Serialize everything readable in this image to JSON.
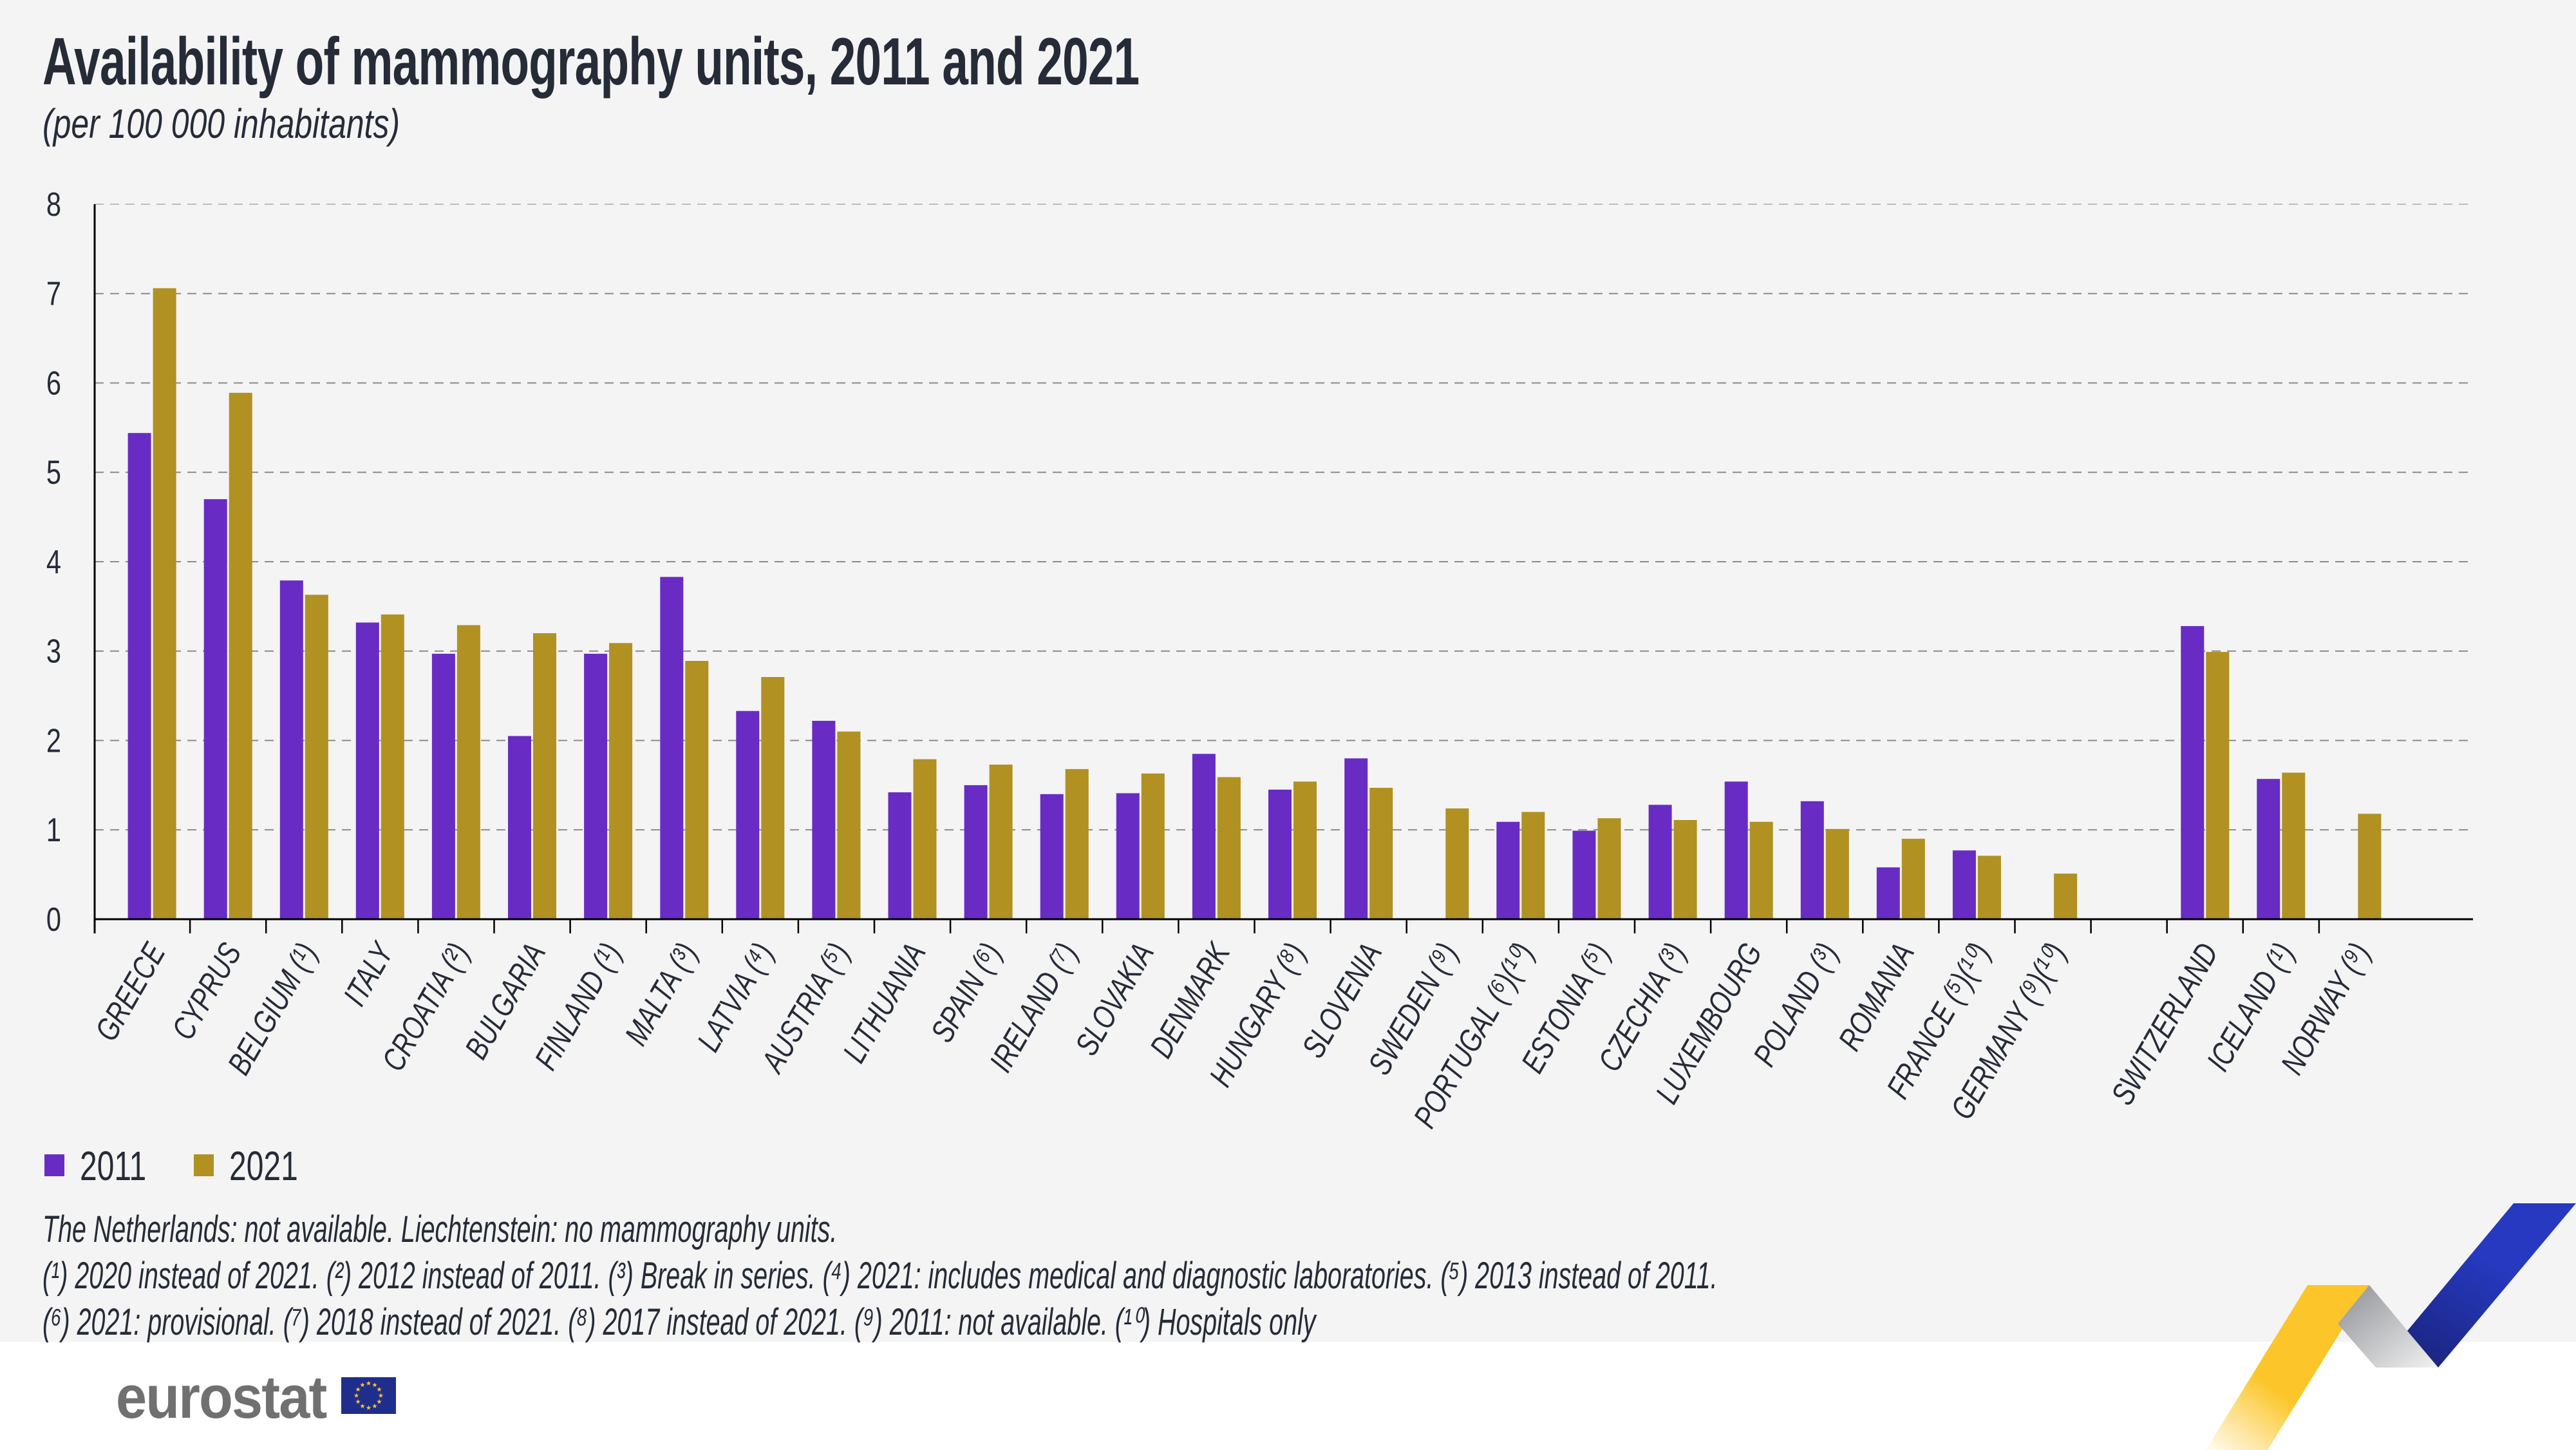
{
  "header": {
    "title": "Availability of mammography units, 2011 and 2021",
    "subtitle": "(per 100 000 inhabitants)"
  },
  "colors": {
    "series_2011": "#682cc5",
    "series_2021": "#b09122",
    "text": "#262b38",
    "background": "#f4f4f4"
  },
  "chart_data": {
    "type": "bar",
    "title": "Availability of mammography units, 2011 and 2021",
    "subtitle": "(per 100 000 inhabitants)",
    "xlabel": "",
    "ylabel": "",
    "ylim": [
      0,
      8
    ],
    "yticks": [
      "0",
      "1",
      "2",
      "3",
      "4",
      "5",
      "6",
      "7",
      "8"
    ],
    "grid": true,
    "legend_position": "bottom-left",
    "categories": [
      "GREECE",
      "CYPRUS",
      "BELGIUM (¹)",
      "ITALY",
      "CROATIA (²)",
      "BULGARIA",
      "FINLAND (¹)",
      "MALTA (³)",
      "LATVIA (⁴)",
      "AUSTRIA (⁵)",
      "LITHUANIA",
      "SPAIN (⁶)",
      "IRELAND (⁷)",
      "SLOVAKIA",
      "DENMARK",
      "HUNGARY (⁸)",
      "SLOVENIA",
      "SWEDEN (⁹)",
      "PORTUGAL (⁶)(¹⁰)",
      "ESTONIA (⁵)",
      "CZECHIA (³)",
      "LUXEMBOURG",
      "POLAND (³)",
      "ROMANIA",
      "FRANCE (⁵)(¹⁰)",
      "GERMANY (⁹)(¹⁰)",
      "",
      "SWITZERLAND",
      "ICELAND (¹)",
      "NORWAY (⁹)"
    ],
    "series": [
      {
        "name": "2011",
        "values": [
          5.44,
          4.7,
          3.79,
          3.32,
          2.97,
          2.05,
          2.97,
          3.83,
          2.33,
          2.22,
          1.42,
          1.5,
          1.4,
          1.41,
          1.85,
          1.45,
          1.8,
          null,
          1.09,
          0.99,
          1.28,
          1.54,
          1.32,
          0.58,
          0.77,
          null,
          null,
          3.28,
          1.57,
          null
        ]
      },
      {
        "name": "2021",
        "values": [
          7.06,
          5.89,
          3.63,
          3.41,
          3.29,
          3.2,
          3.09,
          2.89,
          2.71,
          2.1,
          1.79,
          1.73,
          1.68,
          1.63,
          1.59,
          1.54,
          1.47,
          1.24,
          1.2,
          1.13,
          1.11,
          1.09,
          1.01,
          0.9,
          0.71,
          0.51,
          null,
          2.99,
          1.64,
          1.18
        ]
      }
    ]
  },
  "legend": [
    {
      "label": "2011",
      "color": "#682cc5"
    },
    {
      "label": "2021",
      "color": "#b09122"
    }
  ],
  "notes": [
    "The Netherlands: not available. Liechtenstein: no mammography units.",
    "(¹) 2020 instead of 2021. (²) 2012 instead of 2011. (³) Break in series. (⁴) 2021: includes medical and diagnostic laboratories. (⁵) 2013 instead of 2011.",
    "(⁶) 2021: provisional. (⁷) 2018 instead of 2021. (⁸) 2017 instead of 2021. (⁹) 2011: not available. (¹⁰) Hospitals only"
  ],
  "footer": {
    "logo_text": "eurostat",
    "flag_icon": "eu-flag-icon",
    "decoration": "eurostat-ribbon-graphic"
  }
}
